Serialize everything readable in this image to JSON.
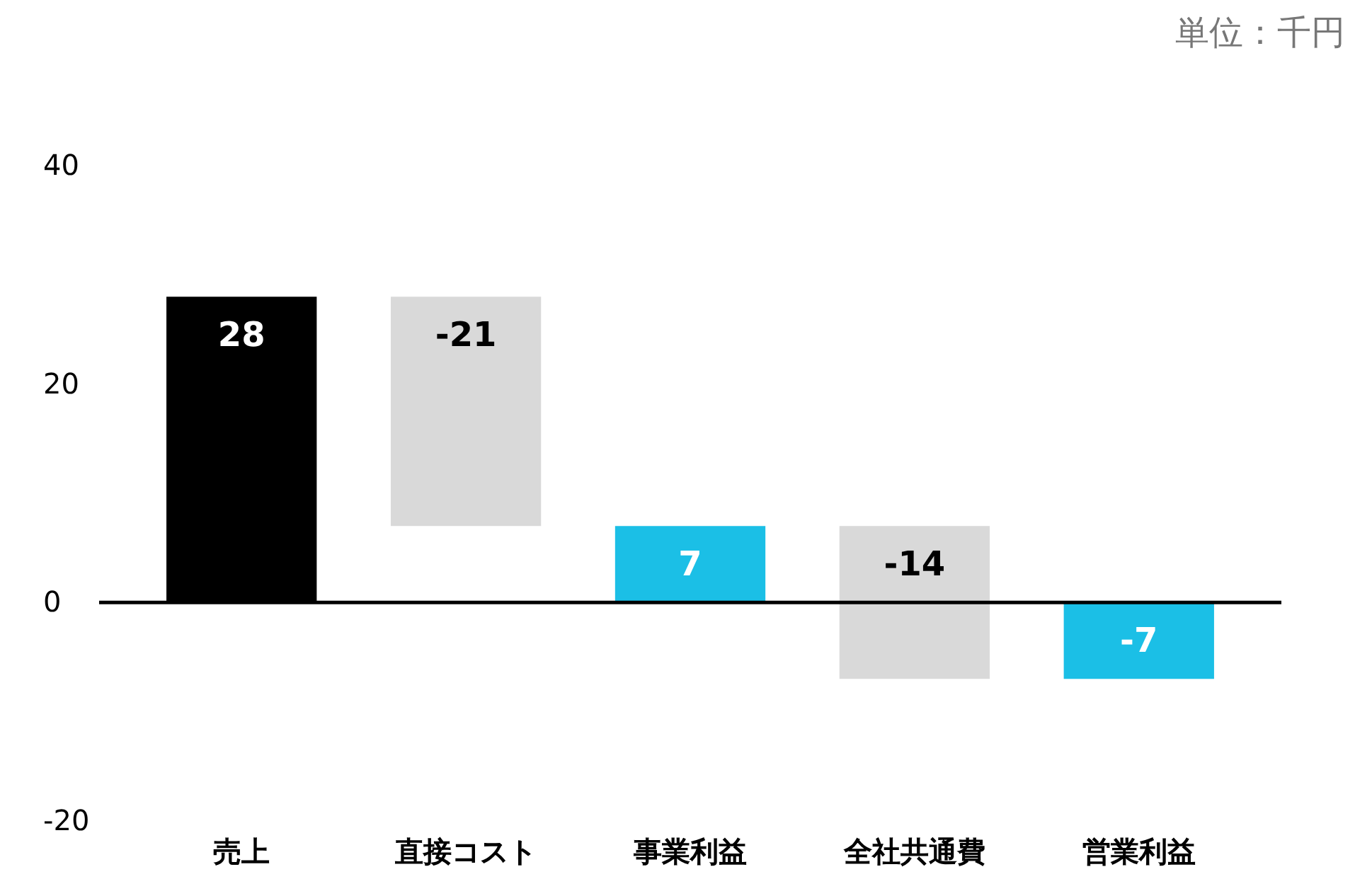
{
  "chart_data": {
    "type": "bar",
    "categories": [
      "売上",
      "直接コスト",
      "事業利益",
      "全社共通費",
      "営業利益"
    ],
    "values": [
      28,
      -21,
      7,
      -14,
      -7
    ],
    "base": [
      0,
      28,
      0,
      7,
      0
    ],
    "colors": [
      "#000000",
      "#d9d9d9",
      "#1bbfe6",
      "#d9d9d9",
      "#1bbfe6"
    ],
    "data_labels": true,
    "ylim": [
      -20,
      40
    ],
    "yticks": [
      -20,
      0,
      20,
      40
    ],
    "grid": false,
    "ref_lines": [
      {
        "axis": "y",
        "value": 0,
        "color": "#000000"
      }
    ],
    "annotations": [
      "単位：千円"
    ]
  }
}
